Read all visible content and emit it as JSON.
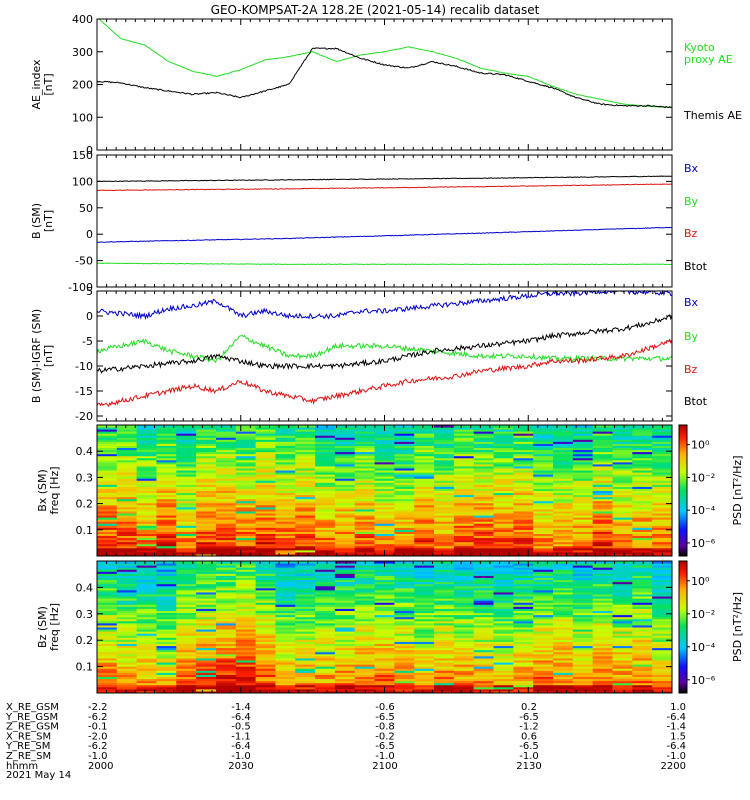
{
  "title": "GEO-KOMPSAT-2A 128.2E (2021-05-14) recalib dataset",
  "x_ticks": [
    "2000",
    "2030",
    "2100",
    "2130",
    "2200"
  ],
  "footer": {
    "rows": [
      {
        "label": "X_RE_GSM",
        "values": [
          "-2.2",
          "-1.4",
          "-0.6",
          "0.2",
          "1.0"
        ]
      },
      {
        "label": "Y_RE_GSM",
        "values": [
          "-6.2",
          "-6.4",
          "-6.5",
          "-6.5",
          "-6.4"
        ]
      },
      {
        "label": "Z_RE_GSM",
        "values": [
          "-0.1",
          "-0.5",
          "-0.8",
          "-1.2",
          "-1.4"
        ]
      },
      {
        "label": "X_RE_SM",
        "values": [
          "-2.0",
          "-1.1",
          "-0.2",
          "0.6",
          "1.5"
        ]
      },
      {
        "label": "Y_RE_SM",
        "values": [
          "-6.2",
          "-6.4",
          "-6.5",
          "-6.5",
          "-6.4"
        ]
      },
      {
        "label": "Z_RE_SM",
        "values": [
          "-1.0",
          "-1.0",
          "-1.0",
          "-1.0",
          "-1.0"
        ]
      },
      {
        "label": "hhmm",
        "values": [
          "2000",
          "2030",
          "2100",
          "2130",
          "2200"
        ]
      }
    ],
    "date": "2021 May 14"
  },
  "colors": {
    "black": "#000000",
    "green": "#22dd22",
    "red": "#dd1111",
    "blue": "#0000cc"
  },
  "chart_data": [
    {
      "type": "line",
      "id": "ae",
      "ylabel": "AE_index",
      "yunit": "[nT]",
      "ylim": [
        0,
        400
      ],
      "yticks": [
        0,
        100,
        200,
        300,
        400
      ],
      "x": [
        "20:00",
        "20:05",
        "20:10",
        "20:15",
        "20:20",
        "20:25",
        "20:30",
        "20:35",
        "20:40",
        "20:45",
        "20:50",
        "20:55",
        "21:00",
        "21:05",
        "21:10",
        "21:15",
        "21:20",
        "21:25",
        "21:30",
        "21:35",
        "21:40",
        "21:45",
        "21:50",
        "21:55",
        "22:00"
      ],
      "series": [
        {
          "name": "Kyoto proxy AE",
          "color": "green",
          "values": [
            405,
            340,
            320,
            270,
            240,
            225,
            245,
            275,
            285,
            300,
            270,
            290,
            300,
            315,
            300,
            280,
            250,
            235,
            225,
            195,
            170,
            155,
            140,
            133,
            130
          ]
        },
        {
          "name": "Themis AE",
          "color": "black",
          "values": [
            210,
            205,
            190,
            180,
            170,
            175,
            160,
            180,
            200,
            310,
            310,
            280,
            260,
            250,
            270,
            255,
            235,
            230,
            210,
            190,
            160,
            140,
            135,
            135,
            130
          ]
        }
      ]
    },
    {
      "type": "line",
      "id": "bsm",
      "ylabel": "B (SM)",
      "yunit": "[nT]",
      "ylim": [
        -100,
        150
      ],
      "yticks": [
        -100,
        -50,
        0,
        50,
        100,
        150
      ],
      "x_range": [
        "20:00",
        "22:00"
      ],
      "series": [
        {
          "name": "Btot",
          "color": "black",
          "values": [
            100,
            103,
            106,
            110
          ]
        },
        {
          "name": "Bz",
          "color": "red",
          "values": [
            83,
            86,
            90,
            95
          ]
        },
        {
          "name": "Bx",
          "color": "blue",
          "values": [
            -15,
            -8,
            2,
            13
          ]
        },
        {
          "name": "By",
          "color": "green",
          "values": [
            -55,
            -57,
            -57,
            -57
          ]
        }
      ],
      "legend_order": [
        "Bx",
        "By",
        "Bz",
        "Btot"
      ]
    },
    {
      "type": "line",
      "id": "bigrf",
      "ylabel": "B (SM)-IGRF (SM)",
      "yunit": "[nT]",
      "ylim": [
        -21,
        5
      ],
      "yticks": [
        -20,
        -15,
        -10,
        -5,
        0,
        5
      ],
      "x": [
        "20:00",
        "20:05",
        "20:10",
        "20:15",
        "20:20",
        "20:25",
        "20:30",
        "20:35",
        "20:40",
        "20:45",
        "20:50",
        "20:55",
        "21:00",
        "21:05",
        "21:10",
        "21:15",
        "21:20",
        "21:25",
        "21:30",
        "21:35",
        "21:40",
        "21:45",
        "21:50",
        "21:55",
        "22:00"
      ],
      "series": [
        {
          "name": "Bx",
          "color": "blue",
          "values": [
            1,
            0.5,
            0,
            1.5,
            2,
            3,
            0,
            1,
            0,
            0,
            0,
            1,
            1,
            1.5,
            2,
            2.5,
            3,
            3.5,
            4,
            4.5,
            4.5,
            5,
            4.8,
            4.8,
            4.5
          ]
        },
        {
          "name": "By",
          "color": "green",
          "values": [
            -7,
            -6,
            -5,
            -7,
            -8,
            -9,
            -4,
            -6,
            -8,
            -8,
            -6,
            -6,
            -6,
            -6.5,
            -7,
            -7.5,
            -8,
            -8,
            -8,
            -8.5,
            -8.5,
            -8.5,
            -8.5,
            -8.5,
            -8.5
          ]
        },
        {
          "name": "Bz",
          "color": "red",
          "values": [
            -18,
            -17,
            -16,
            -15,
            -14,
            -15,
            -13,
            -15,
            -16,
            -17,
            -16,
            -15,
            -14,
            -13,
            -12.5,
            -12,
            -11,
            -10.5,
            -10,
            -9,
            -9,
            -8.5,
            -8,
            -6.5,
            -5
          ]
        },
        {
          "name": "Btot",
          "color": "black",
          "values": [
            -11,
            -10.5,
            -10,
            -9.5,
            -9,
            -8,
            -9,
            -10,
            -10,
            -10,
            -10,
            -9.5,
            -9,
            -8,
            -7,
            -6.5,
            -6,
            -5.5,
            -5,
            -4,
            -3.5,
            -3,
            -2.5,
            -1.5,
            0
          ]
        }
      ],
      "legend_order": [
        "Bx",
        "By",
        "Bz",
        "Btot"
      ]
    },
    {
      "type": "heatmap",
      "id": "specbx",
      "ylabel": "Bx (SM)",
      "yunit": "freq [Hz]",
      "ylim": [
        0,
        0.5
      ],
      "yticks": [
        0.1,
        0.2,
        0.3,
        0.4
      ],
      "colorbar_label": "PSD [nT²/Hz]",
      "colorbar_ticks": [
        "10⁰",
        "10⁻²",
        "10⁻⁴",
        "10⁻⁶"
      ]
    },
    {
      "type": "heatmap",
      "id": "specbz",
      "ylabel": "Bz (SM)",
      "yunit": "freq [Hz]",
      "ylim": [
        0,
        0.5
      ],
      "yticks": [
        0.1,
        0.2,
        0.3,
        0.4
      ],
      "colorbar_label": "PSD [nT²/Hz]",
      "colorbar_ticks": [
        "10⁰",
        "10⁻²",
        "10⁻⁴",
        "10⁻⁶"
      ]
    }
  ]
}
